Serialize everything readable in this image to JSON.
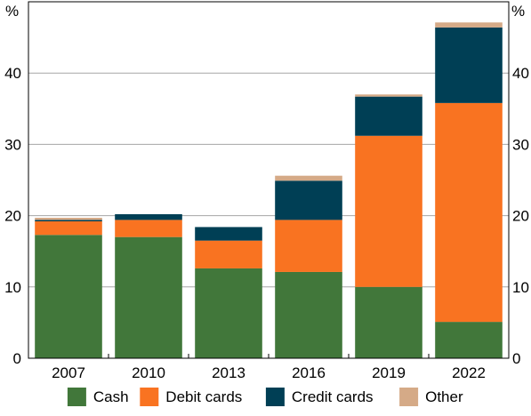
{
  "chart_data": {
    "type": "bar",
    "stacked": true,
    "categories": [
      "2007",
      "2010",
      "2013",
      "2016",
      "2019",
      "2022"
    ],
    "series": [
      {
        "name": "Cash",
        "color": "#41773a",
        "values": [
          17.3,
          17.0,
          12.6,
          12.1,
          10.0,
          5.1
        ]
      },
      {
        "name": "Debit cards",
        "color": "#f97321",
        "values": [
          1.9,
          2.4,
          3.9,
          7.3,
          21.2,
          30.7
        ]
      },
      {
        "name": "Credit cards",
        "color": "#003f55",
        "values": [
          0.2,
          0.8,
          1.9,
          5.5,
          5.5,
          10.6
        ]
      },
      {
        "name": "Other",
        "color": "#d5aa87",
        "values": [
          0.3,
          0.0,
          0.0,
          0.7,
          0.3,
          0.7
        ]
      }
    ],
    "ylim": [
      0,
      50
    ],
    "yticks": [
      0,
      10,
      20,
      30,
      40
    ],
    "y_unit_left": "%",
    "y_unit_right": "%",
    "grid": true,
    "legend_position": "bottom"
  }
}
